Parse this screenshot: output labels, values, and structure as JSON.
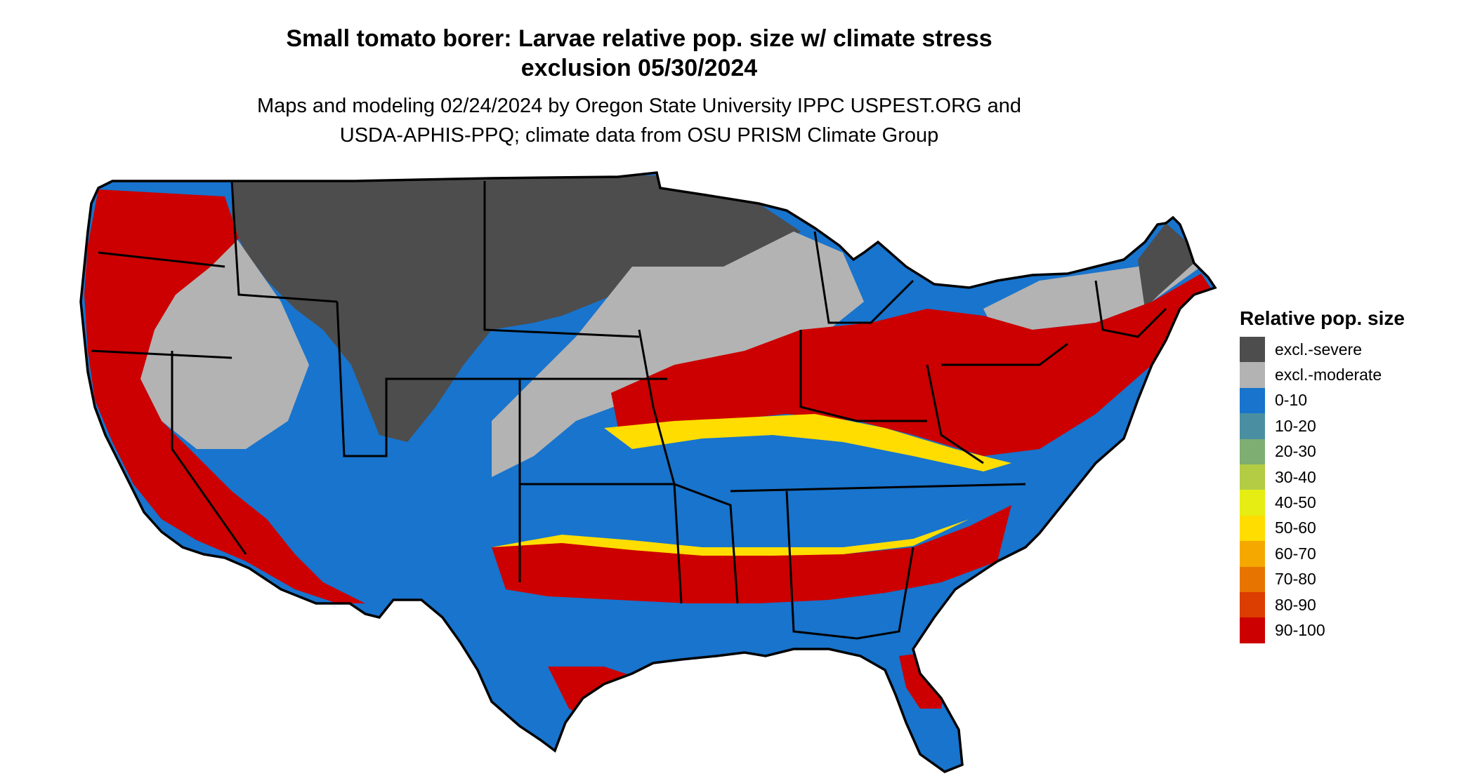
{
  "title": {
    "line1": "Small tomato borer: Larvae relative pop. size w/ climate stress",
    "line2": "exclusion 05/30/2024"
  },
  "subtitle": {
    "line1": "Maps and modeling 02/24/2024 by Oregon State University IPPC USPEST.ORG and",
    "line2": "USDA-APHIS-PPQ; climate data from OSU PRISM Climate Group"
  },
  "legend": {
    "title": "Relative pop. size",
    "items": [
      {
        "label": "excl.-severe",
        "color": "#4d4d4d"
      },
      {
        "label": "excl.-moderate",
        "color": "#b3b3b3"
      },
      {
        "label": "0-10",
        "color": "#1874cd"
      },
      {
        "label": "10-20",
        "color": "#4a8fa1"
      },
      {
        "label": "20-30",
        "color": "#7fae72"
      },
      {
        "label": "30-40",
        "color": "#b3cc44"
      },
      {
        "label": "40-50",
        "color": "#e5ed13"
      },
      {
        "label": "50-60",
        "color": "#ffdd00"
      },
      {
        "label": "60-70",
        "color": "#f5a800"
      },
      {
        "label": "70-80",
        "color": "#e87400"
      },
      {
        "label": "80-90",
        "color": "#dc3d00"
      },
      {
        "label": "90-100",
        "color": "#cc0000"
      }
    ]
  },
  "colors": {
    "severe": "#4d4d4d",
    "moderate": "#b3b3b3",
    "blue": "#1874cd",
    "red": "#cc0000",
    "yellow": "#ffdd00",
    "orange": "#e87400",
    "border": "#000000"
  }
}
